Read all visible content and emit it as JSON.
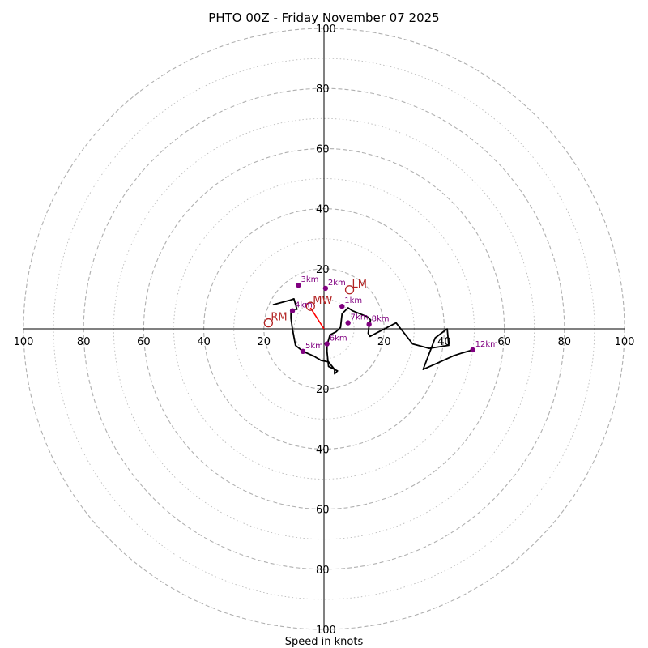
{
  "chart_data": {
    "type": "hodograph",
    "title": "PHTO 00Z - Friday November 07 2025",
    "xlabel": "Speed in knots",
    "range": [
      -100,
      100
    ],
    "ring_labels": [
      "100",
      "80",
      "60",
      "40",
      "20",
      "20",
      "40",
      "60",
      "80",
      "100"
    ],
    "x_tick_labels": [
      "100",
      "80",
      "60",
      "40",
      "20",
      "20",
      "40",
      "60",
      "80",
      "100"
    ],
    "y_tick_labels": [
      "100",
      "80",
      "60",
      "40",
      "20",
      "20",
      "40",
      "60",
      "80",
      "100"
    ],
    "dashed_rings_kt": [
      20,
      40,
      60,
      80,
      100
    ],
    "dotted_rings_kt": [
      10,
      30,
      50,
      70,
      90
    ],
    "wind_profile": {
      "u": [
        -17,
        -11.5,
        -10,
        -9,
        -11,
        -11,
        -10.5,
        -9.5,
        -7,
        -3.5,
        -1,
        1.5,
        3.5,
        3.5,
        4.5,
        2.5,
        1.5,
        1,
        1,
        2,
        4,
        5.5,
        6,
        7.5,
        8,
        9.5,
        14.5,
        15.5,
        15,
        14.7,
        15.3,
        24,
        29.5,
        35,
        41.5,
        41,
        37,
        33,
        37.5,
        43,
        46,
        49.5
      ],
      "v": [
        8,
        9.5,
        10,
        6.5,
        6.5,
        3.5,
        0,
        -5.5,
        -7.5,
        -9,
        -10.5,
        -11,
        -13.5,
        -15,
        -14,
        -13,
        -12.5,
        -7.5,
        -5.5,
        -2,
        -1,
        0.5,
        5,
        6.5,
        7,
        6,
        4,
        3,
        1,
        -1.5,
        -2.5,
        2,
        -5,
        -6.5,
        -5.5,
        0,
        -3,
        -13.5,
        -11.5,
        -9,
        -8,
        -7
      ]
    },
    "height_markers": [
      {
        "label": "1km",
        "u": 6,
        "v": 7.5
      },
      {
        "label": "2km",
        "u": 0.5,
        "v": 13.5
      },
      {
        "label": "3km",
        "u": -8.5,
        "v": 14.5
      },
      {
        "label": "4km",
        "u": -10.5,
        "v": 6
      },
      {
        "label": "5km",
        "u": -7,
        "v": -7.5
      },
      {
        "label": "6km",
        "u": 1,
        "v": -5
      },
      {
        "label": "7km",
        "u": 8,
        "v": 2
      },
      {
        "label": "8km",
        "u": 15,
        "v": 1.5
      },
      {
        "label": "12km",
        "u": 49.5,
        "v": -7
      }
    ],
    "storm_motion": {
      "rm": {
        "label": "RM",
        "u": -18.5,
        "v": 2
      },
      "lm": {
        "label": "LM",
        "u": 8.5,
        "v": 13
      },
      "mw": {
        "label": "MW",
        "u": -4.5,
        "v": 7.5
      },
      "vector": {
        "u": -4.5,
        "v": 7
      }
    },
    "colors": {
      "profile": "#000000",
      "marker": "#800080",
      "marker_label": "#800080",
      "storm": "#b22222",
      "vector": "#ff0000",
      "grid": "#b0b0b0",
      "axis": "#000000"
    }
  }
}
